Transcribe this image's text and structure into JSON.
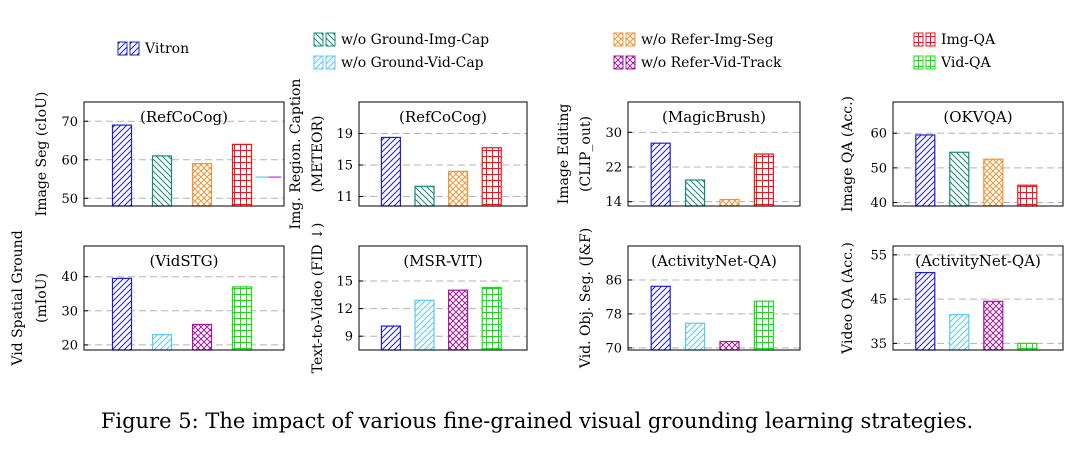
{
  "caption": "Figure 5: The impact of various fine-grained visual grounding learning strategies.",
  "legend": [
    {
      "key": "vitron",
      "label": "Vitron",
      "color": "#1f1fd6",
      "pattern": "diag-ne"
    },
    {
      "key": "wo_gic",
      "label": "w/o Ground-Img-Cap",
      "color": "#138c7a",
      "pattern": "diag-nw"
    },
    {
      "key": "wo_gvc",
      "label": "w/o Ground-Vid-Cap",
      "color": "#5fc8f0",
      "pattern": "diag-ne"
    },
    {
      "key": "wo_ris",
      "label": "w/o Refer-Img-Seg",
      "color": "#f0963c",
      "pattern": "crosshatch-diag"
    },
    {
      "key": "wo_rvt",
      "label": "w/o Refer-Vid-Track",
      "color": "#a01a9a",
      "pattern": "crosshatch-diag"
    },
    {
      "key": "imgqa",
      "label": "Img-QA",
      "color": "#e8181e",
      "pattern": "grid"
    },
    {
      "key": "vidqa",
      "label": "Vid-QA",
      "color": "#1ed81e",
      "pattern": "grid"
    }
  ],
  "chart_data": [
    {
      "type": "bar",
      "title": "(RefCoCog)",
      "ylabel": [
        "Image Seg (cIoU)"
      ],
      "ylim": [
        48,
        75
      ],
      "yticks": [
        50,
        60,
        70
      ],
      "grid": true,
      "series": [
        {
          "key": "vitron",
          "value": 69
        },
        {
          "key": "wo_gic",
          "value": 61
        },
        {
          "key": "wo_ris",
          "value": 59
        },
        {
          "key": "imgqa",
          "value": 64
        }
      ],
      "reference_line": {
        "value": 55.5,
        "colors": [
          "#4fd8e6",
          "#d93acb"
        ]
      }
    },
    {
      "type": "bar",
      "title": "(RefCoCog)",
      "ylabel": [
        "Img. Region. Caption",
        "(METEOR)"
      ],
      "ylim": [
        9.8,
        23
      ],
      "yticks": [
        11,
        15,
        19
      ],
      "grid": true,
      "series": [
        {
          "key": "vitron",
          "value": 18.5
        },
        {
          "key": "wo_gic",
          "value": 12.3
        },
        {
          "key": "wo_ris",
          "value": 14.2
        },
        {
          "key": "imgqa",
          "value": 17.2
        }
      ]
    },
    {
      "type": "bar",
      "title": "(MagicBrush)",
      "ylabel": [
        "Image Editing",
        "(CLIP_out)"
      ],
      "ylim": [
        13,
        37
      ],
      "yticks": [
        14,
        22,
        30
      ],
      "grid": true,
      "series": [
        {
          "key": "vitron",
          "value": 27.5
        },
        {
          "key": "wo_gic",
          "value": 19
        },
        {
          "key": "wo_ris",
          "value": 14.5
        },
        {
          "key": "imgqa",
          "value": 25
        }
      ]
    },
    {
      "type": "bar",
      "title": "(OKVQA)",
      "ylabel": [
        "Image QA (Acc.)"
      ],
      "ylim": [
        39,
        69
      ],
      "yticks": [
        40,
        50,
        60
      ],
      "grid": true,
      "series": [
        {
          "key": "vitron",
          "value": 59.5
        },
        {
          "key": "wo_gic",
          "value": 54.5
        },
        {
          "key": "wo_ris",
          "value": 52.5
        },
        {
          "key": "imgqa",
          "value": 45
        }
      ]
    },
    {
      "type": "bar",
      "title": "(VidSTG)",
      "ylabel": [
        "Vid Spatial Ground",
        "(mIoU)"
      ],
      "ylim": [
        18.5,
        49
      ],
      "yticks": [
        20,
        30,
        40
      ],
      "grid": true,
      "series": [
        {
          "key": "vitron",
          "value": 39.5
        },
        {
          "key": "wo_gvc",
          "value": 23
        },
        {
          "key": "wo_rvt",
          "value": 26
        },
        {
          "key": "vidqa",
          "value": 37
        }
      ]
    },
    {
      "type": "bar",
      "title": "(MSR-VIT)",
      "ylabel": [
        "Text-to-Video (FID ↓)"
      ],
      "ylim": [
        7.5,
        18.8
      ],
      "yticks": [
        9,
        12,
        15
      ],
      "grid": true,
      "series": [
        {
          "key": "vitron",
          "value": 10.1
        },
        {
          "key": "wo_gvc",
          "value": 12.9
        },
        {
          "key": "wo_rvt",
          "value": 14
        },
        {
          "key": "vidqa",
          "value": 14.3
        }
      ]
    },
    {
      "type": "bar",
      "title": "(ActivityNet-QA)",
      "ylabel": [
        "Vid. Obj. Seg. (J&F)"
      ],
      "ylim": [
        69.5,
        94
      ],
      "yticks": [
        70,
        78,
        86
      ],
      "grid": true,
      "series": [
        {
          "key": "vitron",
          "value": 84.5
        },
        {
          "key": "wo_gvc",
          "value": 75.8
        },
        {
          "key": "wo_rvt",
          "value": 71.5
        },
        {
          "key": "vidqa",
          "value": 81
        }
      ]
    },
    {
      "type": "bar",
      "title": "(ActivityNet-QA)",
      "ylabel": [
        "Video QA (Acc.)"
      ],
      "ylim": [
        33.5,
        57
      ],
      "yticks": [
        35,
        45,
        55
      ],
      "grid": true,
      "series": [
        {
          "key": "vitron",
          "value": 51
        },
        {
          "key": "wo_gvc",
          "value": 41.5
        },
        {
          "key": "wo_rvt",
          "value": 44.5
        },
        {
          "key": "vidqa",
          "value": 35
        }
      ]
    }
  ]
}
